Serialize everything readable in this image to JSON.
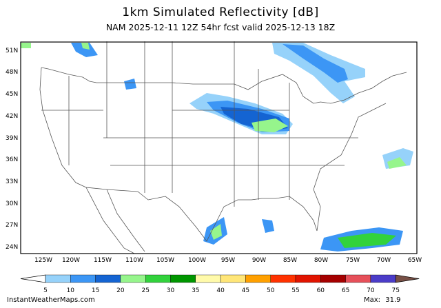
{
  "title": "1km Simulated Reflectivity [dB]",
  "subtitle": "NAM 2025-12-11 12Z 54hr fcst valid 2025-12-13 18Z",
  "map": {
    "lat_ticks": [
      "51N",
      "48N",
      "45N",
      "42N",
      "39N",
      "36N",
      "33N",
      "30N",
      "27N",
      "24N"
    ],
    "lon_ticks": [
      "125W",
      "120W",
      "115W",
      "110W",
      "105W",
      "100W",
      "95W",
      "90W",
      "85W",
      "80W",
      "75W",
      "70W",
      "65W"
    ]
  },
  "colorbar": {
    "labels": [
      "5",
      "10",
      "15",
      "20",
      "25",
      "30",
      "35",
      "40",
      "45",
      "50",
      "55",
      "60",
      "65",
      "70",
      "75"
    ],
    "colors": [
      "#96d2fa",
      "#3c96f5",
      "#1464d2",
      "#96f58c",
      "#32d23c",
      "#009600",
      "#fffaaa",
      "#ffe678",
      "#ffa000",
      "#ff3200",
      "#e11400",
      "#a50000",
      "#e6505a",
      "#4b3cc8"
    ],
    "under_color": "#ffffff",
    "over_color": "#785046"
  },
  "footer": {
    "site": "InstantWeatherMaps.com",
    "max_label": "Max:",
    "max_value": "31.9"
  }
}
